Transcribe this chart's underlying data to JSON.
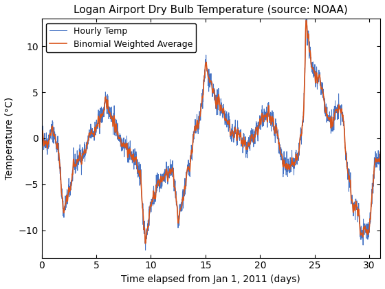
{
  "title": "Logan Airport Dry Bulb Temperature (source: NOAA)",
  "xlabel": "Time elapsed from Jan 1, 2011 (days)",
  "ylabel": "Temperature (°C)",
  "xlim": [
    0,
    31
  ],
  "ylim": [
    -13,
    13
  ],
  "xticks": [
    0,
    5,
    10,
    15,
    20,
    25,
    30
  ],
  "yticks": [
    -10,
    -5,
    0,
    5,
    10
  ],
  "hourly_color": "#4472C4",
  "smooth_color": "#D95319",
  "hourly_label": "Hourly Temp",
  "smooth_label": "Binomial Weighted Average",
  "hourly_linewidth": 0.7,
  "smooth_linewidth": 1.2,
  "title_fontsize": 11,
  "label_fontsize": 10,
  "tick_fontsize": 10,
  "legend_fontsize": 9,
  "background_color": "#ffffff",
  "seed": 42,
  "control_t": [
    0,
    0.5,
    1.0,
    1.5,
    2.0,
    2.5,
    3.0,
    3.5,
    4.0,
    4.5,
    5.0,
    5.5,
    6.0,
    6.5,
    7.0,
    7.5,
    8.0,
    8.5,
    9.0,
    9.5,
    10.0,
    10.5,
    11.0,
    11.5,
    12.0,
    12.5,
    13.0,
    13.5,
    14.0,
    14.5,
    15.0,
    15.5,
    16.0,
    16.5,
    17.0,
    17.5,
    18.0,
    18.5,
    19.0,
    19.5,
    20.0,
    20.5,
    21.0,
    21.5,
    22.0,
    22.5,
    23.0,
    23.5,
    24.0,
    24.2,
    24.5,
    25.0,
    25.5,
    26.0,
    26.5,
    27.0,
    27.5,
    28.0,
    28.5,
    29.0,
    29.2,
    29.5,
    30.0,
    30.5,
    31.0
  ],
  "control_v": [
    0.5,
    -0.5,
    1.0,
    -1.0,
    -8.0,
    -6.0,
    -3.0,
    -2.0,
    -1.5,
    0.5,
    1.0,
    2.5,
    4.0,
    2.0,
    0.5,
    -0.5,
    -1.5,
    -2.5,
    -3.5,
    -11.5,
    -7.0,
    -5.5,
    -4.5,
    -4.0,
    -3.5,
    -9.5,
    -6.0,
    -3.0,
    0.5,
    2.0,
    8.0,
    5.5,
    4.0,
    3.5,
    1.5,
    0.5,
    0.5,
    -0.5,
    -0.5,
    0.0,
    1.5,
    2.5,
    2.0,
    1.0,
    -2.0,
    -3.5,
    -3.0,
    -2.0,
    2.5,
    13.0,
    9.5,
    7.0,
    6.5,
    3.0,
    1.5,
    3.0,
    3.0,
    -3.0,
    -7.5,
    -7.5,
    -10.5,
    -10.0,
    -10.0,
    -2.5,
    -2.5
  ]
}
